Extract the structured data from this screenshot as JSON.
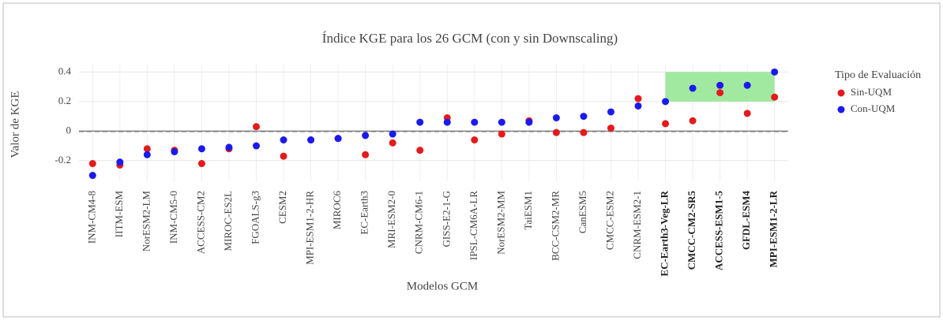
{
  "chart_data": {
    "type": "scatter",
    "title": "Índice KGE para los 26 GCM (con y sin Downscaling)",
    "xlabel": "Modelos GCM",
    "ylabel": "Valor de KGE",
    "legend_title": "Tipo de Evaluación",
    "legend_position": "right",
    "grid": true,
    "categories": [
      "INM-CM4-8",
      "IITM-ESM",
      "NorESM2-LM",
      "INM-CM5-0",
      "ACCESS-CM2",
      "MIROC-ES2L",
      "FGOALS-g3",
      "CESM2",
      "MPI-ESM1-2-HR",
      "MIROC6",
      "EC-Earth3",
      "MRI-ESM2-0",
      "CNRM-CM6-1",
      "GISS-E2-1-G",
      "IPSL-CM6A-LR",
      "NorESM2-MM",
      "TaiESM1",
      "BCC-CSM2-MR",
      "CanESM5",
      "CMCC-ESM2",
      "CNRM-ESM2-1",
      "EC-Earth3-Veg-LR",
      "CMCC-CM2-SR5",
      "ACCESS-ESM1-5",
      "GFDL-ESM4",
      "MPI-ESM1-2-LR"
    ],
    "series": [
      {
        "name": "Sin-UQM",
        "color": "#e41a1c",
        "values": [
          -0.22,
          -0.23,
          -0.12,
          -0.13,
          -0.22,
          -0.12,
          0.03,
          -0.17,
          -0.06,
          -0.05,
          -0.16,
          -0.08,
          -0.13,
          0.09,
          -0.06,
          -0.02,
          0.07,
          -0.01,
          -0.01,
          0.02,
          0.22,
          0.05,
          0.07,
          0.26,
          0.12,
          0.23
        ]
      },
      {
        "name": "Con-UQM",
        "color": "#1a1aee",
        "values": [
          -0.3,
          -0.21,
          -0.16,
          -0.14,
          -0.12,
          -0.11,
          -0.1,
          -0.06,
          -0.06,
          -0.05,
          -0.03,
          -0.02,
          0.06,
          0.06,
          0.06,
          0.06,
          0.06,
          0.09,
          0.1,
          0.13,
          0.17,
          0.2,
          0.29,
          0.31,
          0.31,
          0.4
        ]
      }
    ],
    "ylim": [
      -0.34,
      0.45
    ],
    "yticks": [
      -0.2,
      0,
      0.2,
      0.4
    ],
    "highlight": {
      "x": [
        "EC-Earth3-Veg-LR",
        "MPI-ESM1-2-LR"
      ],
      "y": [
        0.2,
        0.4
      ],
      "color": "#90e590"
    }
  }
}
